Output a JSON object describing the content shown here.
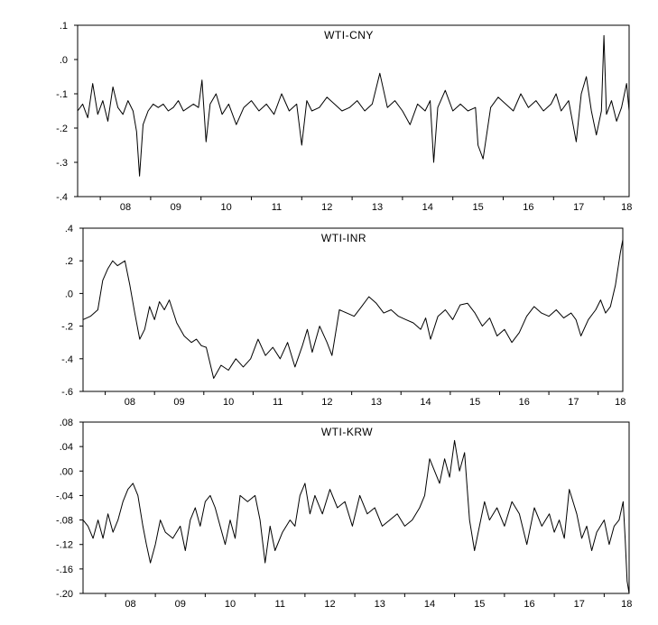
{
  "chart_data": [
    {
      "type": "line",
      "title": "WTI-CNY",
      "xlabel": "",
      "ylabel": "",
      "ylim": [
        -0.4,
        0.1
      ],
      "yticks": [
        ".1",
        ".0",
        "-.1",
        "-.2",
        "-.3",
        "-.4"
      ],
      "xlim": [
        2007.55,
        2018.5
      ],
      "xticks": [
        "08",
        "09",
        "10",
        "11",
        "12",
        "13",
        "14",
        "15",
        "16",
        "17",
        "18"
      ],
      "series": [
        {
          "x": [
            2007.55,
            2007.65,
            2007.75,
            2007.85,
            2007.95,
            2008.05,
            2008.15,
            2008.25,
            2008.35,
            2008.45,
            2008.55,
            2008.65,
            2008.72,
            2008.78,
            2008.85,
            2008.95,
            2009.05,
            2009.15,
            2009.25,
            2009.35,
            2009.45,
            2009.55,
            2009.65,
            2009.75,
            2009.85,
            2009.95,
            2010.02,
            2010.1,
            2010.18,
            2010.3,
            2010.42,
            2010.55,
            2010.7,
            2010.85,
            2011.0,
            2011.15,
            2011.3,
            2011.45,
            2011.6,
            2011.75,
            2011.9,
            2012.0,
            2012.1,
            2012.2,
            2012.35,
            2012.5,
            2012.65,
            2012.8,
            2012.95,
            2013.1,
            2013.25,
            2013.4,
            2013.55,
            2013.7,
            2013.85,
            2014.0,
            2014.15,
            2014.3,
            2014.45,
            2014.55,
            2014.62,
            2014.7,
            2014.85,
            2015.0,
            2015.15,
            2015.3,
            2015.45,
            2015.5,
            2015.6,
            2015.75,
            2015.9,
            2016.05,
            2016.2,
            2016.35,
            2016.5,
            2016.65,
            2016.8,
            2016.95,
            2017.05,
            2017.15,
            2017.3,
            2017.45,
            2017.55,
            2017.65,
            2017.75,
            2017.85,
            2017.95,
            2018.0,
            2018.05,
            2018.15,
            2018.25,
            2018.35,
            2018.45,
            2018.5
          ],
          "y": [
            -0.15,
            -0.13,
            -0.17,
            -0.07,
            -0.16,
            -0.12,
            -0.18,
            -0.08,
            -0.14,
            -0.16,
            -0.12,
            -0.15,
            -0.21,
            -0.34,
            -0.19,
            -0.15,
            -0.13,
            -0.14,
            -0.13,
            -0.15,
            -0.14,
            -0.12,
            -0.15,
            -0.14,
            -0.13,
            -0.14,
            -0.06,
            -0.24,
            -0.13,
            -0.1,
            -0.16,
            -0.13,
            -0.19,
            -0.14,
            -0.12,
            -0.15,
            -0.13,
            -0.16,
            -0.1,
            -0.15,
            -0.13,
            -0.25,
            -0.12,
            -0.15,
            -0.14,
            -0.11,
            -0.13,
            -0.15,
            -0.14,
            -0.12,
            -0.15,
            -0.13,
            -0.04,
            -0.14,
            -0.12,
            -0.15,
            -0.19,
            -0.13,
            -0.15,
            -0.12,
            -0.3,
            -0.14,
            -0.09,
            -0.15,
            -0.13,
            -0.15,
            -0.14,
            -0.25,
            -0.29,
            -0.14,
            -0.11,
            -0.13,
            -0.15,
            -0.1,
            -0.14,
            -0.12,
            -0.15,
            -0.13,
            -0.1,
            -0.15,
            -0.12,
            -0.24,
            -0.1,
            -0.05,
            -0.15,
            -0.22,
            -0.15,
            0.07,
            -0.16,
            -0.12,
            -0.18,
            -0.14,
            -0.07,
            -0.15
          ]
        }
      ]
    },
    {
      "type": "line",
      "title": "WTI-INR",
      "xlabel": "",
      "ylabel": "",
      "ylim": [
        -0.6,
        0.4
      ],
      "yticks": [
        ".4",
        ".2",
        ".0",
        "-.2",
        "-.4",
        "-.6"
      ],
      "xlim": [
        2007.55,
        2018.5
      ],
      "xticks": [
        "08",
        "09",
        "10",
        "11",
        "12",
        "13",
        "14",
        "15",
        "16",
        "17",
        "18"
      ],
      "series": [
        {
          "x": [
            2007.55,
            2007.7,
            2007.85,
            2007.95,
            2008.05,
            2008.15,
            2008.25,
            2008.4,
            2008.5,
            2008.6,
            2008.7,
            2008.8,
            2008.9,
            2009.0,
            2009.1,
            2009.2,
            2009.3,
            2009.45,
            2009.6,
            2009.75,
            2009.85,
            2009.95,
            2010.05,
            2010.2,
            2010.35,
            2010.5,
            2010.65,
            2010.8,
            2010.95,
            2011.1,
            2011.25,
            2011.4,
            2011.55,
            2011.7,
            2011.85,
            2012.0,
            2012.1,
            2012.2,
            2012.35,
            2012.5,
            2012.6,
            2012.75,
            2012.9,
            2013.05,
            2013.2,
            2013.35,
            2013.5,
            2013.65,
            2013.8,
            2013.95,
            2014.1,
            2014.25,
            2014.4,
            2014.5,
            2014.6,
            2014.75,
            2014.9,
            2015.05,
            2015.2,
            2015.35,
            2015.5,
            2015.65,
            2015.8,
            2015.95,
            2016.1,
            2016.25,
            2016.4,
            2016.55,
            2016.7,
            2016.85,
            2017.0,
            2017.15,
            2017.3,
            2017.45,
            2017.55,
            2017.65,
            2017.8,
            2017.95,
            2018.05,
            2018.15,
            2018.25,
            2018.35,
            2018.45,
            2018.5
          ],
          "y": [
            -0.16,
            -0.14,
            -0.1,
            0.08,
            0.15,
            0.2,
            0.17,
            0.2,
            0.05,
            -0.12,
            -0.28,
            -0.22,
            -0.08,
            -0.16,
            -0.05,
            -0.1,
            -0.04,
            -0.18,
            -0.26,
            -0.3,
            -0.28,
            -0.32,
            -0.33,
            -0.52,
            -0.44,
            -0.47,
            -0.4,
            -0.45,
            -0.4,
            -0.28,
            -0.38,
            -0.33,
            -0.4,
            -0.3,
            -0.45,
            -0.32,
            -0.22,
            -0.36,
            -0.2,
            -0.3,
            -0.38,
            -0.1,
            -0.12,
            -0.14,
            -0.08,
            -0.02,
            -0.06,
            -0.12,
            -0.1,
            -0.14,
            -0.16,
            -0.18,
            -0.22,
            -0.15,
            -0.28,
            -0.14,
            -0.1,
            -0.16,
            -0.07,
            -0.06,
            -0.12,
            -0.2,
            -0.15,
            -0.26,
            -0.22,
            -0.3,
            -0.24,
            -0.14,
            -0.08,
            -0.12,
            -0.14,
            -0.1,
            -0.15,
            -0.12,
            -0.16,
            -0.26,
            -0.16,
            -0.1,
            -0.04,
            -0.12,
            -0.08,
            0.05,
            0.25,
            0.33
          ]
        }
      ]
    },
    {
      "type": "line",
      "title": "WTI-KRW",
      "xlabel": "",
      "ylabel": "",
      "ylim": [
        -0.2,
        0.08
      ],
      "yticks": [
        ".08",
        ".04",
        ".00",
        "-.04",
        "-.08",
        "-.12",
        "-.16",
        "-.20"
      ],
      "xlim": [
        2007.55,
        2018.5
      ],
      "xticks": [
        "08",
        "09",
        "10",
        "11",
        "12",
        "13",
        "14",
        "15",
        "16",
        "17",
        "18"
      ],
      "series": [
        {
          "x": [
            2007.55,
            2007.65,
            2007.75,
            2007.85,
            2007.95,
            2008.05,
            2008.15,
            2008.25,
            2008.35,
            2008.45,
            2008.55,
            2008.65,
            2008.75,
            2008.82,
            2008.9,
            2009.0,
            2009.1,
            2009.2,
            2009.35,
            2009.5,
            2009.6,
            2009.7,
            2009.8,
            2009.9,
            2010.0,
            2010.1,
            2010.2,
            2010.3,
            2010.4,
            2010.5,
            2010.6,
            2010.7,
            2010.85,
            2011.0,
            2011.1,
            2011.2,
            2011.3,
            2011.4,
            2011.55,
            2011.7,
            2011.8,
            2011.9,
            2012.0,
            2012.1,
            2012.2,
            2012.35,
            2012.5,
            2012.65,
            2012.8,
            2012.95,
            2013.1,
            2013.25,
            2013.4,
            2013.55,
            2013.7,
            2013.85,
            2014.0,
            2014.15,
            2014.3,
            2014.4,
            2014.5,
            2014.6,
            2014.7,
            2014.8,
            2014.9,
            2015.0,
            2015.1,
            2015.2,
            2015.3,
            2015.4,
            2015.5,
            2015.6,
            2015.7,
            2015.85,
            2016.0,
            2016.15,
            2016.3,
            2016.45,
            2016.6,
            2016.75,
            2016.9,
            2017.0,
            2017.1,
            2017.2,
            2017.3,
            2017.45,
            2017.55,
            2017.65,
            2017.75,
            2017.85,
            2018.0,
            2018.1,
            2018.2,
            2018.3,
            2018.38,
            2018.42,
            2018.46,
            2018.5
          ],
          "y": [
            -0.08,
            -0.09,
            -0.11,
            -0.08,
            -0.11,
            -0.07,
            -0.1,
            -0.08,
            -0.05,
            -0.03,
            -0.02,
            -0.04,
            -0.09,
            -0.12,
            -0.15,
            -0.12,
            -0.08,
            -0.1,
            -0.11,
            -0.09,
            -0.13,
            -0.08,
            -0.06,
            -0.09,
            -0.05,
            -0.04,
            -0.06,
            -0.09,
            -0.12,
            -0.08,
            -0.11,
            -0.04,
            -0.05,
            -0.04,
            -0.08,
            -0.15,
            -0.09,
            -0.13,
            -0.1,
            -0.08,
            -0.09,
            -0.04,
            -0.02,
            -0.07,
            -0.04,
            -0.07,
            -0.03,
            -0.06,
            -0.05,
            -0.09,
            -0.04,
            -0.07,
            -0.06,
            -0.09,
            -0.08,
            -0.07,
            -0.09,
            -0.08,
            -0.06,
            -0.04,
            0.02,
            0.0,
            -0.02,
            0.02,
            -0.01,
            0.05,
            0.0,
            0.03,
            -0.08,
            -0.13,
            -0.09,
            -0.05,
            -0.08,
            -0.06,
            -0.09,
            -0.05,
            -0.07,
            -0.12,
            -0.06,
            -0.09,
            -0.07,
            -0.1,
            -0.08,
            -0.11,
            -0.03,
            -0.07,
            -0.11,
            -0.09,
            -0.13,
            -0.1,
            -0.08,
            -0.12,
            -0.09,
            -0.08,
            -0.05,
            -0.11,
            -0.18,
            -0.2
          ]
        }
      ]
    }
  ]
}
